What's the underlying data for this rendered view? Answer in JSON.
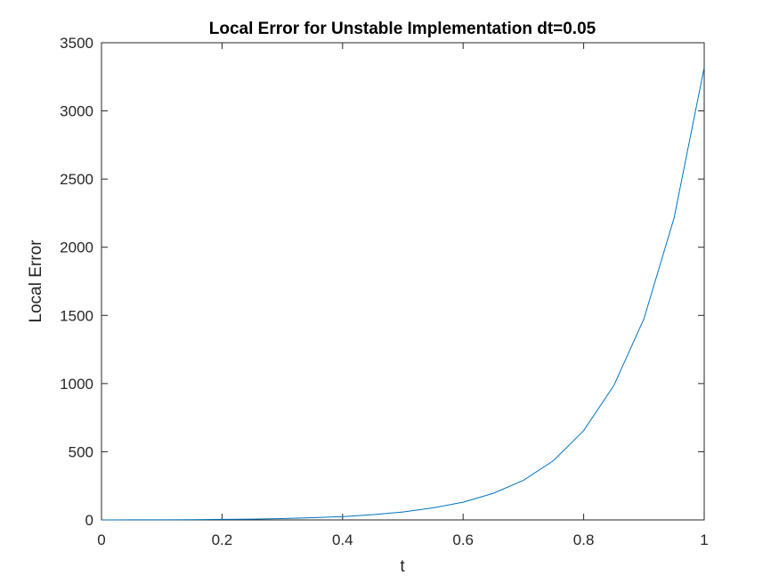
{
  "chart_data": {
    "type": "line",
    "title": "Local Error for Unstable Implementation dt=0.05",
    "xlabel": "t",
    "ylabel": "Local Error",
    "xlim": [
      0,
      1
    ],
    "ylim": [
      0,
      3500
    ],
    "xticks": [
      "0",
      "0.2",
      "0.4",
      "0.6",
      "0.8",
      "1"
    ],
    "yticks": [
      "0",
      "500",
      "1000",
      "1500",
      "2000",
      "2500",
      "3000",
      "3500"
    ],
    "grid": false,
    "series": [
      {
        "color": "#0072BD",
        "x": [
          0,
          0.05,
          0.1,
          0.15,
          0.2,
          0.25,
          0.3,
          0.35,
          0.4,
          0.45,
          0.5,
          0.55,
          0.6,
          0.65,
          0.7,
          0.75,
          0.8,
          0.85,
          0.9,
          0.95,
          1.0
        ],
        "y": [
          0,
          0.5,
          1,
          2,
          4,
          6,
          10,
          16,
          24,
          38,
          58,
          88,
          130,
          195,
          290,
          435,
          655,
          985,
          1475,
          2215,
          3320
        ]
      }
    ]
  }
}
